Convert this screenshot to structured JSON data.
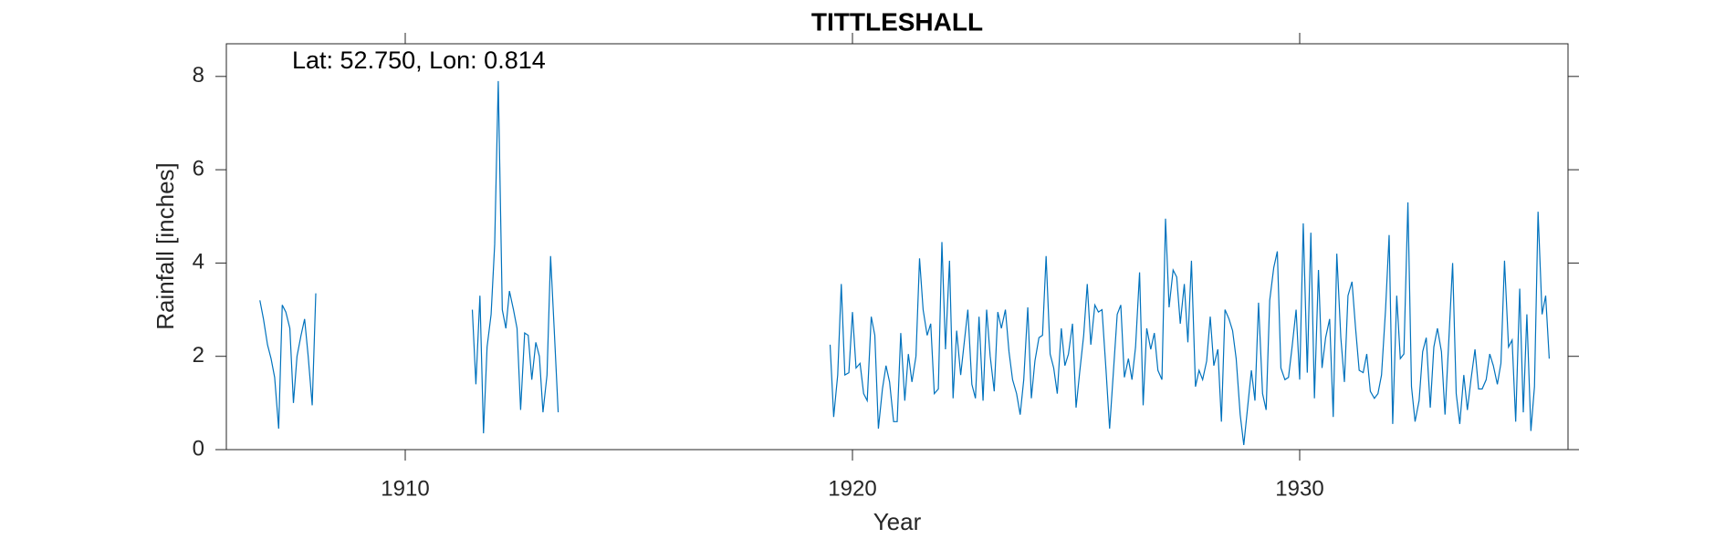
{
  "chart_data": {
    "type": "line",
    "title": "TITTLESHALL",
    "annotation": "Lat: 52.750, Lon: 0.814",
    "x_label": "Year",
    "y_label": "Rainfall [inches]",
    "xlim": [
      1906,
      1936
    ],
    "ylim": [
      0,
      8.7
    ],
    "xticks": [
      1910,
      1920,
      1930
    ],
    "yticks": [
      0,
      2,
      4,
      6,
      8
    ],
    "grid": false,
    "x": [
      1906.75,
      1906.83,
      1906.92,
      1907,
      1907.08,
      1907.17,
      1907.25,
      1907.33,
      1907.42,
      1907.5,
      1907.58,
      1907.67,
      1907.75,
      1907.83,
      1907.92,
      1908,
      1910,
      1911.5,
      1911.58,
      1911.67,
      1911.75,
      1911.83,
      1911.92,
      1912,
      1912.08,
      1912.17,
      1912.25,
      1912.33,
      1912.42,
      1912.5,
      1912.58,
      1912.67,
      1912.75,
      1912.83,
      1912.92,
      1913,
      1913.08,
      1913.17,
      1913.25,
      1913.33,
      1913.42,
      1916,
      1919.5,
      1919.58,
      1919.67,
      1919.75,
      1919.83,
      1919.92,
      1920,
      1920.08,
      1920.17,
      1920.25,
      1920.33,
      1920.42,
      1920.5,
      1920.58,
      1920.67,
      1920.75,
      1920.83,
      1920.92,
      1921,
      1921.08,
      1921.17,
      1921.25,
      1921.33,
      1921.42,
      1921.5,
      1921.58,
      1921.67,
      1921.75,
      1921.83,
      1921.92,
      1922,
      1922.08,
      1922.17,
      1922.25,
      1922.33,
      1922.42,
      1922.5,
      1922.58,
      1922.67,
      1922.75,
      1922.83,
      1922.92,
      1923,
      1923.08,
      1923.17,
      1923.25,
      1923.33,
      1923.42,
      1923.5,
      1923.58,
      1923.67,
      1923.75,
      1923.83,
      1923.92,
      1924,
      1924.08,
      1924.17,
      1924.25,
      1924.33,
      1924.42,
      1924.5,
      1924.58,
      1924.67,
      1924.75,
      1924.83,
      1924.92,
      1925,
      1925.08,
      1925.17,
      1925.25,
      1925.33,
      1925.42,
      1925.5,
      1925.58,
      1925.67,
      1925.75,
      1925.83,
      1925.92,
      1926,
      1926.08,
      1926.17,
      1926.25,
      1926.33,
      1926.42,
      1926.5,
      1926.58,
      1926.67,
      1926.75,
      1926.83,
      1926.92,
      1927,
      1927.08,
      1927.17,
      1927.25,
      1927.33,
      1927.42,
      1927.5,
      1927.58,
      1927.67,
      1927.75,
      1927.83,
      1927.92,
      1928,
      1928.08,
      1928.17,
      1928.25,
      1928.33,
      1928.42,
      1928.5,
      1928.58,
      1928.67,
      1928.75,
      1928.83,
      1928.92,
      1929,
      1929.08,
      1929.17,
      1929.25,
      1929.33,
      1929.42,
      1929.5,
      1929.58,
      1929.67,
      1929.75,
      1929.83,
      1929.92,
      1930,
      1930.08,
      1930.17,
      1930.25,
      1930.33,
      1930.42,
      1930.5,
      1930.58,
      1930.67,
      1930.75,
      1930.83,
      1930.92,
      1931,
      1931.08,
      1931.17,
      1931.25,
      1931.33,
      1931.42,
      1931.5,
      1931.58,
      1931.67,
      1931.75,
      1931.83,
      1931.92,
      1932,
      1932.08,
      1932.17,
      1932.25,
      1932.33,
      1932.42,
      1932.5,
      1932.58,
      1932.67,
      1932.75,
      1932.83,
      1932.92,
      1933,
      1933.08,
      1933.17,
      1933.25,
      1933.33,
      1933.42,
      1933.5,
      1933.58,
      1933.67,
      1933.75,
      1933.83,
      1933.92,
      1934,
      1934.08,
      1934.17,
      1934.25,
      1934.33,
      1934.42,
      1934.5,
      1934.58,
      1934.67,
      1934.75,
      1934.83,
      1934.92,
      1935,
      1935.08,
      1935.17,
      1935.25,
      1935.33,
      1935.42,
      1935.5,
      1935.58
    ],
    "series": [
      {
        "name": "Rainfall",
        "color": "#0072bd",
        "values": [
          3.2,
          2.8,
          2.25,
          1.95,
          1.55,
          0.45,
          3.1,
          2.95,
          2.6,
          1.0,
          2.0,
          2.45,
          2.8,
          2.0,
          0.95,
          3.35,
          null,
          3.0,
          1.4,
          3.3,
          0.35,
          2.2,
          2.9,
          4.4,
          7.9,
          3.0,
          2.6,
          3.4,
          3.0,
          2.6,
          0.85,
          2.5,
          2.45,
          1.5,
          2.3,
          2.0,
          0.8,
          1.6,
          4.15,
          2.6,
          0.8,
          null,
          2.25,
          0.7,
          1.6,
          3.55,
          1.6,
          1.65,
          2.95,
          1.75,
          1.85,
          1.2,
          1.05,
          2.85,
          2.45,
          0.45,
          1.3,
          1.8,
          1.45,
          0.6,
          0.6,
          2.5,
          1.05,
          2.05,
          1.45,
          2.0,
          4.1,
          3.0,
          2.45,
          2.7,
          1.2,
          1.3,
          4.45,
          2.15,
          4.05,
          1.1,
          2.55,
          1.6,
          2.3,
          3.0,
          1.4,
          1.1,
          2.85,
          1.05,
          3.0,
          2.0,
          1.25,
          2.95,
          2.6,
          3.0,
          2.1,
          1.5,
          1.2,
          0.75,
          1.5,
          3.05,
          1.1,
          1.9,
          2.4,
          2.45,
          4.15,
          2.05,
          1.75,
          1.2,
          2.6,
          1.8,
          2.05,
          2.7,
          0.9,
          1.65,
          2.45,
          3.55,
          2.25,
          3.1,
          2.95,
          3.0,
          1.7,
          0.45,
          1.6,
          2.9,
          3.1,
          1.55,
          1.95,
          1.5,
          2.2,
          3.8,
          0.95,
          2.6,
          2.15,
          2.5,
          1.7,
          1.5,
          4.95,
          3.05,
          3.85,
          3.7,
          2.7,
          3.55,
          2.3,
          4.05,
          1.35,
          1.7,
          1.5,
          1.9,
          2.85,
          1.8,
          2.15,
          0.6,
          3.0,
          2.8,
          2.55,
          1.95,
          0.75,
          0.1,
          0.85,
          1.7,
          1.05,
          3.15,
          1.2,
          0.85,
          3.2,
          3.9,
          4.25,
          1.75,
          1.5,
          1.55,
          2.2,
          3.0,
          1.5,
          4.85,
          1.65,
          4.65,
          1.1,
          3.85,
          1.75,
          2.4,
          2.8,
          0.7,
          4.2,
          2.4,
          1.45,
          3.3,
          3.6,
          2.6,
          1.7,
          1.65,
          2.05,
          1.25,
          1.1,
          1.2,
          1.6,
          3.0,
          4.6,
          0.55,
          3.3,
          1.95,
          2.05,
          5.3,
          1.35,
          0.6,
          1.05,
          2.1,
          2.4,
          0.9,
          2.2,
          2.6,
          2.1,
          0.75,
          2.25,
          4.0,
          1.2,
          0.55,
          1.6,
          0.85,
          1.5,
          2.15,
          1.3,
          1.3,
          1.5,
          2.05,
          1.8,
          1.4,
          1.85,
          4.05,
          2.2,
          2.35,
          0.6,
          3.45,
          0.8,
          2.9,
          0.4,
          1.35,
          5.1,
          2.9,
          3.3,
          1.95
        ]
      }
    ]
  }
}
